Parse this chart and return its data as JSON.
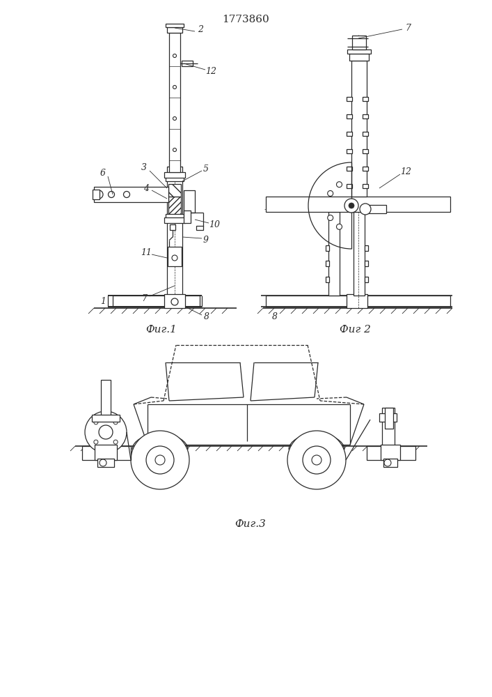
{
  "title": "1773860",
  "bg_color": "#ffffff",
  "line_color": "#2a2a2a",
  "line_width": 0.9,
  "fig1_caption": "Фиг.1",
  "fig2_caption": "Фиг 2",
  "fig3_caption": "Фиг.3",
  "caption_fontsize": 11
}
